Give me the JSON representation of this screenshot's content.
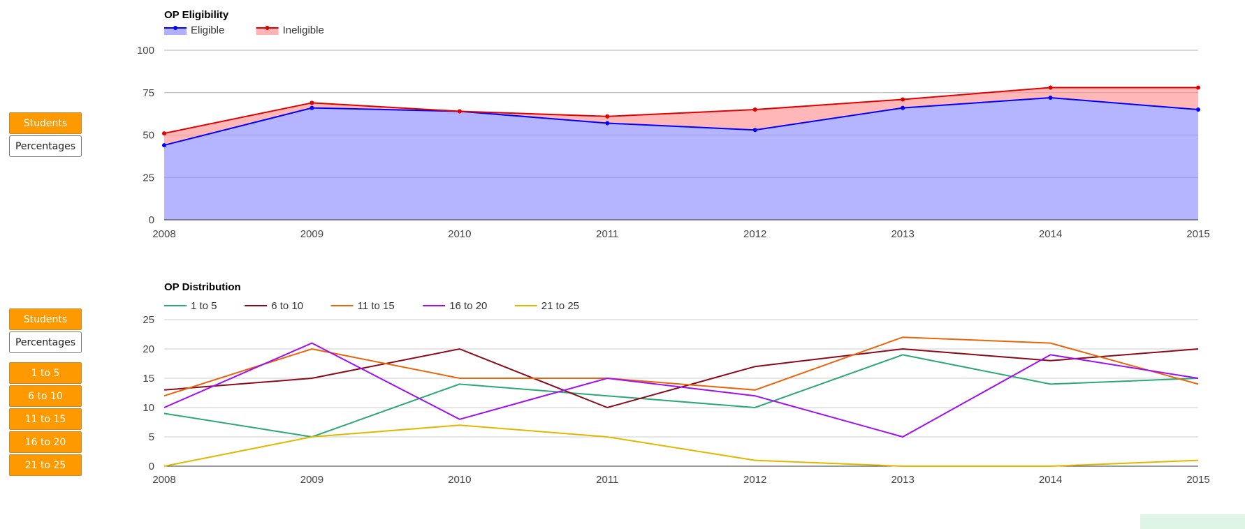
{
  "controls": {
    "eligibility": {
      "students_label": "Students",
      "percentages_label": "Percentages"
    },
    "distribution": {
      "students_label": "Students",
      "percentages_label": "Percentages",
      "range_buttons": [
        "1 to 5",
        "6 to 10",
        "11 to 15",
        "16 to 20",
        "21 to 25"
      ]
    }
  },
  "chart_data": [
    {
      "type": "area",
      "stacked": true,
      "title": "OP Eligibility",
      "xlabel": "",
      "ylabel": "",
      "x": [
        "2008",
        "2009",
        "2010",
        "2011",
        "2012",
        "2013",
        "2014",
        "2015"
      ],
      "ylim": [
        0,
        100
      ],
      "yticks": [
        0,
        25,
        50,
        75,
        100
      ],
      "grid": true,
      "legend_position": "top-left",
      "series": [
        {
          "name": "Eligible",
          "color": "#0000ff",
          "fill": "#b0b0ff",
          "values": [
            44,
            66,
            64,
            57,
            53,
            66,
            72,
            65
          ]
        },
        {
          "name": "Ineligible",
          "color": "#e00000",
          "fill": "#ffb3b3",
          "values": [
            7,
            3,
            0,
            4,
            12,
            5,
            6,
            13
          ]
        }
      ],
      "stacked_totals": [
        51,
        69,
        64,
        61,
        65,
        71,
        78,
        78
      ]
    },
    {
      "type": "line",
      "title": "OP Distribution",
      "xlabel": "",
      "ylabel": "",
      "x": [
        "2008",
        "2009",
        "2010",
        "2011",
        "2012",
        "2013",
        "2014",
        "2015"
      ],
      "ylim": [
        0,
        25
      ],
      "yticks": [
        0,
        5,
        10,
        15,
        20,
        25
      ],
      "grid": true,
      "legend_position": "top-left",
      "series": [
        {
          "name": "1 to 5",
          "color": "#2ba874",
          "values": [
            9,
            5,
            14,
            12,
            10,
            19,
            14,
            15
          ]
        },
        {
          "name": "6 to 10",
          "color": "#8b0a1a",
          "values": [
            13,
            15,
            20,
            10,
            17,
            20,
            18,
            20
          ]
        },
        {
          "name": "11 to 15",
          "color": "#e8650c",
          "values": [
            12,
            20,
            15,
            15,
            13,
            22,
            21,
            14
          ]
        },
        {
          "name": "16 to 20",
          "color": "#a00ff0",
          "values": [
            10,
            21,
            8,
            15,
            12,
            5,
            19,
            15
          ]
        },
        {
          "name": "21 to 25",
          "color": "#e0b800",
          "values": [
            0,
            5,
            7,
            5,
            1,
            0,
            0,
            1
          ]
        }
      ]
    }
  ]
}
